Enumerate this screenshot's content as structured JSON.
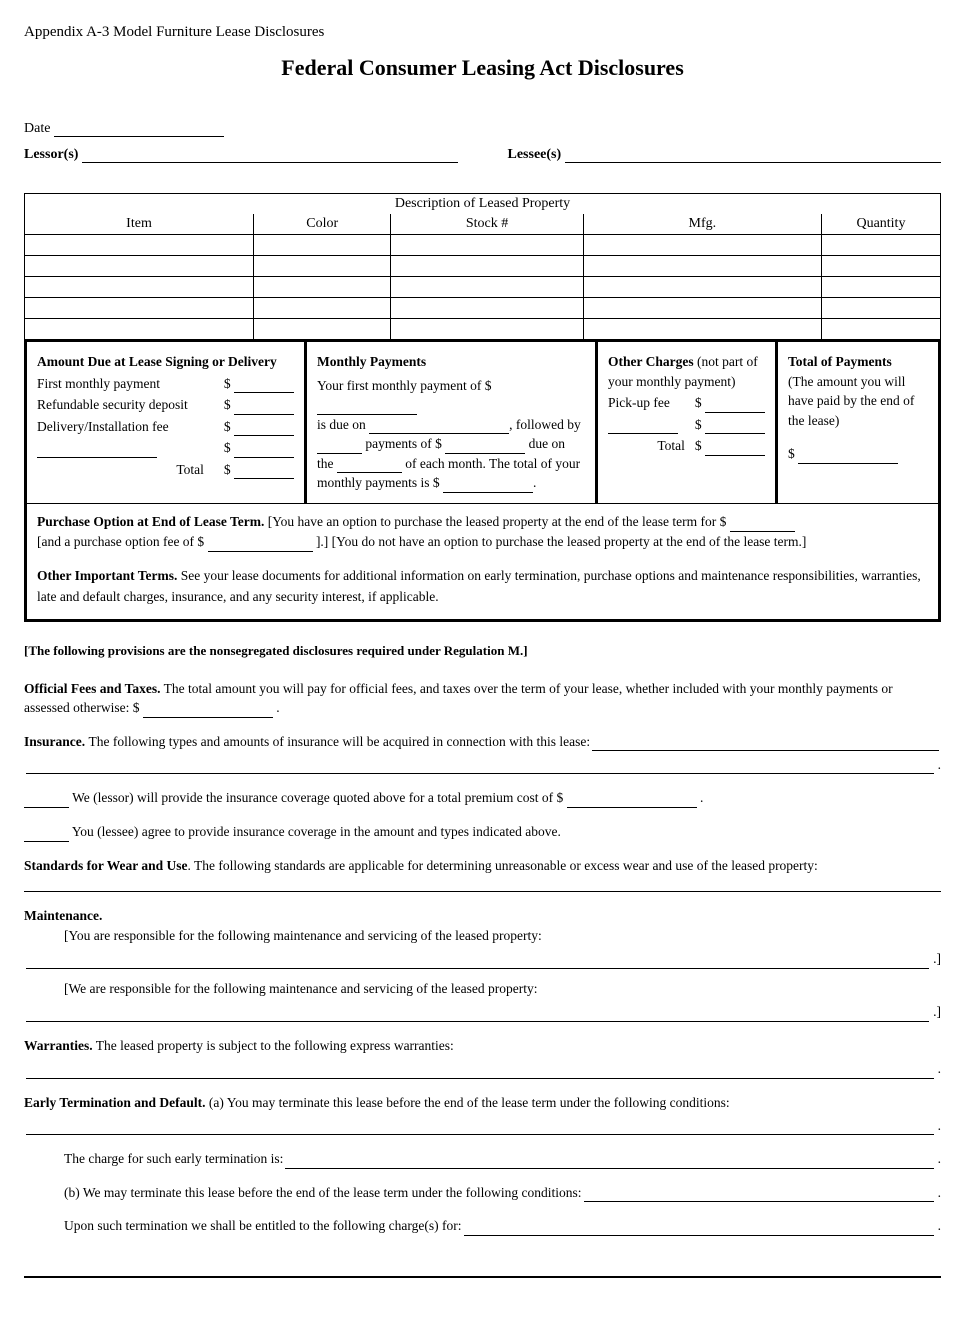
{
  "appendix": "Appendix A-3 Model Furniture Lease Disclosures",
  "title": "Federal Consumer Leasing Act Disclosures",
  "labels": {
    "date": "Date",
    "lessor": "Lessor(s)",
    "lessee": "Lessee(s)"
  },
  "property_table": {
    "title": "Description of Leased Property",
    "columns": [
      "Item",
      "Color",
      "Stock #",
      "Mfg.",
      "Quantity"
    ],
    "col_widths": [
      "25%",
      "15%",
      "21%",
      "26%",
      "13%"
    ],
    "row_count": 5
  },
  "seg": {
    "amount_due": {
      "head": "Amount Due at Lease Signing or Delivery",
      "rows": [
        "First monthly payment",
        "Refundable security deposit",
        "Delivery/Installation fee",
        ""
      ],
      "total": "Total"
    },
    "monthly": {
      "head": "Monthly Payments",
      "t1": "Your first monthly payment of $",
      "t2": "is due on",
      "t3": ", followed by",
      "t4": "payments of $",
      "t5": "due on",
      "t6": "the",
      "t7": "of each month. The total of your",
      "t8": "monthly payments is $",
      "t9": "."
    },
    "other": {
      "head1": "Other Charges",
      "head2": "(not part of your monthly payment)",
      "row1": "Pick-up fee",
      "total": "Total"
    },
    "total": {
      "head": "Total of Payments",
      "sub": "(The amount you will have paid by the end of the lease)"
    },
    "purchase": {
      "b": "Purchase Option at End of Lease Term.",
      "t1": "[You have an option to purchase the leased property at the end of the lease term for $",
      "t2": "[and a purchase option fee of $",
      "t3": "].] [You do not have an option to purchase the leased property at the end of the lease term.]"
    },
    "other_terms": {
      "b": "Other Important Terms.",
      "t": "See your lease documents for additional information on early termination, purchase options and maintenance responsibilities, warranties, late and default charges, insurance, and any security interest, if applicable."
    }
  },
  "nonseg": {
    "note": "[The following provisions are the nonsegregated disclosures required under Regulation M.]",
    "fees": {
      "b": "Official Fees and Taxes.",
      "t": "The total amount you will pay for official fees, and taxes over the term of your lease, whether included with your monthly payments or assessed otherwise:  $",
      "p": "."
    },
    "insurance": {
      "b": "Insurance.",
      "t": "The following types and amounts of insurance will be acquired in connection with this lease:",
      "lessor": "We (lessor) will provide the insurance coverage quoted above for a total premium cost of $",
      "lessee": "You (lessee) agree to provide insurance coverage in the amount and types indicated above."
    },
    "wear": {
      "b": "Standards for Wear and Use",
      "t": ". The following standards are applicable for determining unreasonable or excess wear and use of the leased property:"
    },
    "maint": {
      "b": "Maintenance.",
      "you": "[You are responsible for the following maintenance and servicing of the leased property:",
      "we": "[We are responsible for the following maintenance and servicing of the leased property:"
    },
    "warr": {
      "b": "Warranties.",
      "t": "The leased property is subject to the following express warranties:"
    },
    "term": {
      "b": "Early Termination and Default.",
      "a": "(a) You may terminate this lease before the end of the lease term under the following conditions:",
      "charge": "The charge for such early termination is:",
      "b2": "(b) We may terminate this lease before the end of the lease term under the following conditions:",
      "upon": "Upon such termination we shall be entitled to the following charge(s) for:"
    }
  }
}
